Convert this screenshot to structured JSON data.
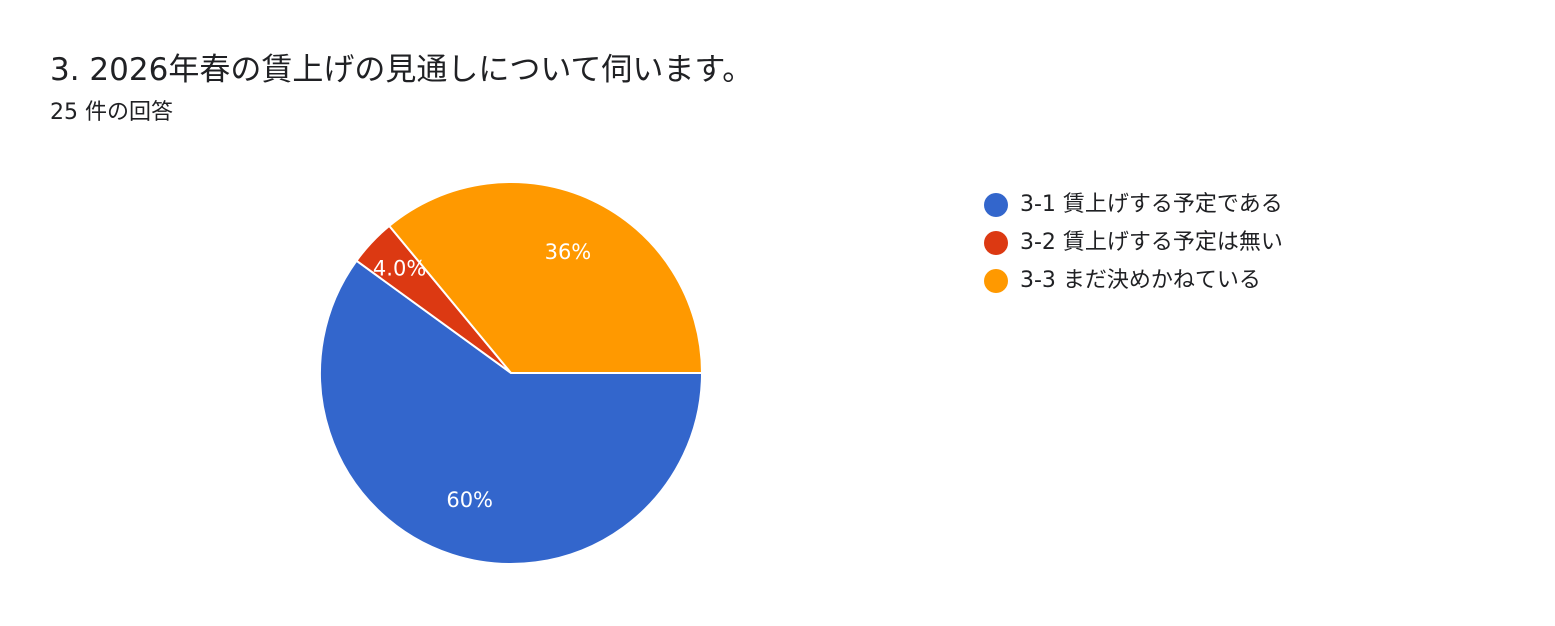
{
  "header": {
    "title": "3.  2026年春の賃上げの見通しについて伺います。",
    "response_count": "25 件の回答"
  },
  "chart_data": {
    "type": "pie",
    "title": "3.  2026年春の賃上げの見通しについて伺います。",
    "subtitle": "25 件の回答",
    "legend_position": "right",
    "slices": [
      {
        "label": "3-1 賃上げする予定である",
        "value": 60,
        "display": "60%",
        "color": "#3366cc"
      },
      {
        "label": "3-2 賃上げする予定は無い",
        "value": 4,
        "display": "4.0%",
        "color": "#dc3912"
      },
      {
        "label": "3-3 まだ決めかねている",
        "value": 36,
        "display": "36%",
        "color": "#ff9900"
      }
    ]
  }
}
